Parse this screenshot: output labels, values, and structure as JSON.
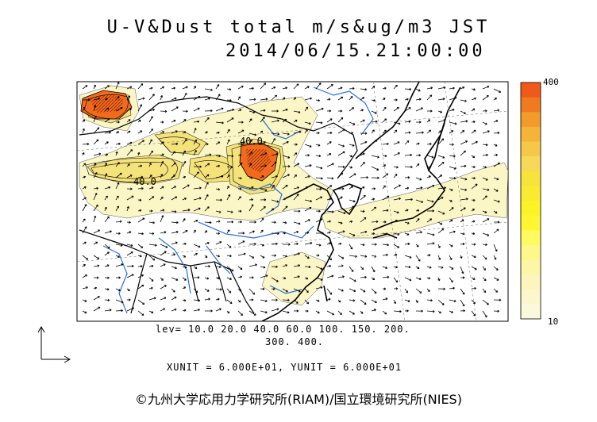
{
  "header": {
    "title": "U-V&Dust total m/s&ug/m3 JST",
    "timestamp": "2014/06/15.21:00:00"
  },
  "map": {
    "contour_labels": [
      "40.0",
      "40.0"
    ],
    "colors": {
      "land_line": "#000000",
      "rivers": "#2b6fd8",
      "low_fill": "#fbf6c6",
      "mid_fill": "#f2df6e",
      "high_fill": "#f26a1e"
    }
  },
  "legend": {
    "max_label": "400",
    "min_label": "10",
    "colors": [
      "#ef5a1a",
      "#f07a20",
      "#f29a2a",
      "#f4b43a",
      "#f6c84a",
      "#f8d858",
      "#f8e23c",
      "#faea30",
      "#fcf228",
      "#fef632",
      "#fefa60",
      "#fef88a",
      "#fcf6a6",
      "#fcf6bc",
      "#fcf6cc",
      "#fcf8dc"
    ],
    "levels_text_line1": "lev= 10.0 20.0 40.0 60.0 100. 150. 200.",
    "levels_text_line2": "300. 400."
  },
  "units": {
    "text": "XUNIT = 6.000E+01, YUNIT = 6.000E+01"
  },
  "credit": {
    "text": "©九州大学応用力学研究所(RIAM)/国立環境研究所(NIES)"
  }
}
